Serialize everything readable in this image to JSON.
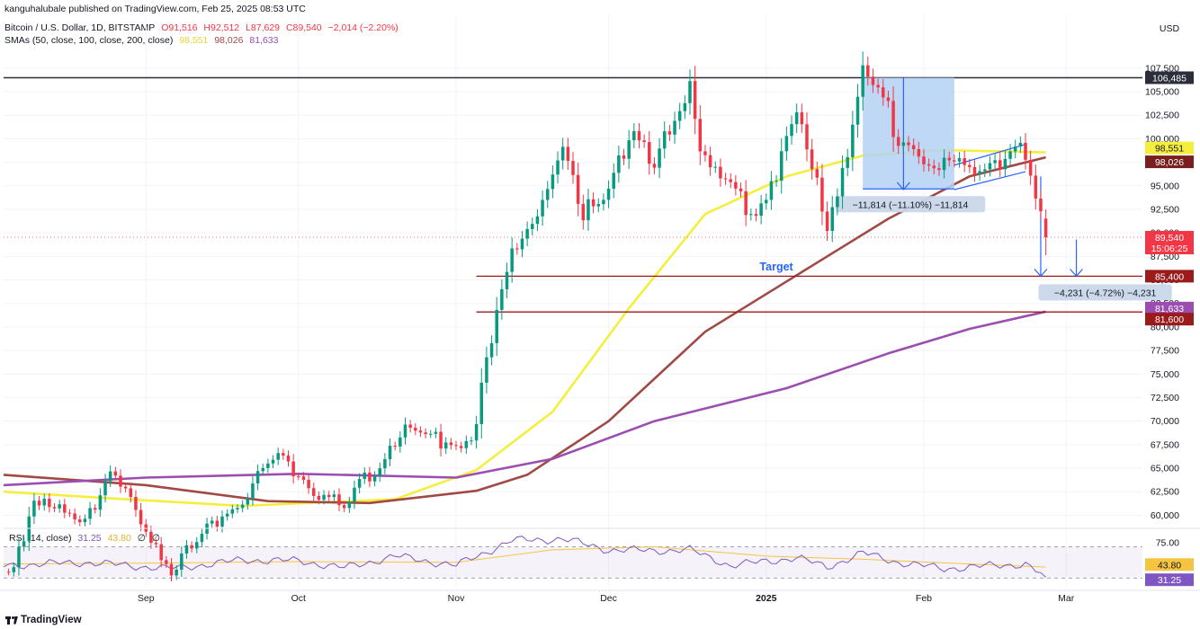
{
  "header": {
    "publisher": "kanguhalubale published on TradingView.com, Feb 25, 2025 08:53 UTC",
    "symbol": "Bitcoin / U.S. Dollar, 1D, BITSTAMP",
    "open": "O91,516",
    "high": "H92,512",
    "low": "L87,629",
    "close": "C89,540",
    "change": "−2,014 (−2.20%)",
    "sma_label": "SMAs (50, close, 100, close, 200, close)",
    "sma50": "98,551",
    "sma100": "98,026",
    "sma200": "81,633",
    "rsi_label": "RSI (14, close)",
    "rsi_value": "31.25",
    "rsi_ma": "43.80",
    "rsi_na": "∅",
    "rsi_na2": "∅"
  },
  "branding": {
    "logo_text": "TradingView"
  },
  "colors": {
    "up": "#089981",
    "down": "#f23645",
    "sma50": "#f5ee3f",
    "sma100": "#a14a45",
    "sma200": "#9c4eb0",
    "hline": "#9b1b1b",
    "resistance": "#000000",
    "measure_fill": "#b3d1f5",
    "arrow": "#2962ff",
    "rsi_line": "#7e57c2",
    "rsi_ma": "#f5c542"
  },
  "chart_data": {
    "type": "candlestick",
    "currency": "USD",
    "x_ticks": [
      "Sep",
      "Oct",
      "Nov",
      "Dec",
      "2025",
      "Feb",
      "Mar"
    ],
    "x_tick_dates": [
      "2024-09-01",
      "2024-10-01",
      "2024-11-01",
      "2024-12-01",
      "2025-01-01",
      "2025-02-01",
      "2025-03-01"
    ],
    "date_range": [
      "2024-08-04",
      "2025-03-16"
    ],
    "y_ticks": [
      60000,
      62500,
      65000,
      67500,
      70000,
      72500,
      75000,
      77500,
      80000,
      82500,
      85000,
      87500,
      90000,
      92500,
      95000,
      97500,
      100000,
      102500,
      105000,
      107500
    ],
    "y_tick_labels": [
      "60,000",
      "62,500",
      "65,000",
      "67,500",
      "70,000",
      "72,500",
      "75,000",
      "77,500",
      "80,000",
      "82,500",
      "85,000",
      "87,500",
      "90,000",
      "92,500",
      "95,000",
      "97,500",
      "100,000",
      "102,500",
      "105,000",
      "107,500"
    ],
    "ylim": [
      58800,
      109300
    ],
    "price_path": [
      [
        "2024-08-05",
        54000
      ],
      [
        "2024-08-10",
        61000
      ],
      [
        "2024-08-20",
        60000
      ],
      [
        "2024-08-25",
        64200
      ],
      [
        "2024-09-01",
        59000
      ],
      [
        "2024-09-06",
        54000
      ],
      [
        "2024-09-15",
        59500
      ],
      [
        "2024-09-27",
        66000
      ],
      [
        "2024-10-10",
        60500
      ],
      [
        "2024-10-20",
        68500
      ],
      [
        "2024-11-04",
        68000
      ],
      [
        "2024-11-12",
        88000
      ],
      [
        "2024-11-22",
        98500
      ],
      [
        "2024-11-26",
        91000
      ],
      [
        "2024-12-05",
        100500
      ],
      [
        "2024-12-10",
        96500
      ],
      [
        "2024-12-17",
        106200
      ],
      [
        "2024-12-20",
        97000
      ],
      [
        "2024-12-30",
        92000
      ],
      [
        "2025-01-07",
        102000
      ],
      [
        "2025-01-13",
        91000
      ],
      [
        "2025-01-20",
        106000
      ],
      [
        "2025-01-27",
        101000
      ],
      [
        "2025-02-03",
        96500
      ],
      [
        "2025-02-10",
        97300
      ],
      [
        "2025-02-20",
        98300
      ],
      [
        "2025-02-21",
        96200
      ],
      [
        "2025-02-24",
        91500
      ],
      [
        "2025-02-25",
        89540
      ]
    ],
    "last_candle": {
      "date": "2025-02-25",
      "open": 91516,
      "high": 92512,
      "low": 87629,
      "close": 89540
    },
    "sma_series": [
      {
        "name": "SMA 50",
        "points": [
          [
            "2024-08-04",
            62500
          ],
          [
            "2024-08-25",
            61800
          ],
          [
            "2024-09-20",
            61000
          ],
          [
            "2024-10-20",
            61700
          ],
          [
            "2024-11-05",
            64800
          ],
          [
            "2024-11-20",
            71000
          ],
          [
            "2024-12-05",
            82000
          ],
          [
            "2024-12-20",
            92000
          ],
          [
            "2025-01-05",
            96000
          ],
          [
            "2025-01-20",
            98200
          ],
          [
            "2025-02-05",
            98800
          ],
          [
            "2025-02-25",
            98551
          ]
        ]
      },
      {
        "name": "SMA 100",
        "points": [
          [
            "2024-08-04",
            64300
          ],
          [
            "2024-09-01",
            63200
          ],
          [
            "2024-09-25",
            61500
          ],
          [
            "2024-10-15",
            61300
          ],
          [
            "2024-11-05",
            62600
          ],
          [
            "2024-11-15",
            64300
          ],
          [
            "2024-12-01",
            70000
          ],
          [
            "2024-12-20",
            79500
          ],
          [
            "2025-01-10",
            86500
          ],
          [
            "2025-01-25",
            91500
          ],
          [
            "2025-02-10",
            96000
          ],
          [
            "2025-02-25",
            98026
          ]
        ]
      },
      {
        "name": "SMA 200",
        "points": [
          [
            "2024-08-04",
            63200
          ],
          [
            "2024-09-01",
            64000
          ],
          [
            "2024-10-01",
            64400
          ],
          [
            "2024-11-01",
            64000
          ],
          [
            "2024-11-20",
            66000
          ],
          [
            "2024-12-10",
            70000
          ],
          [
            "2025-01-05",
            73500
          ],
          [
            "2025-01-25",
            77200
          ],
          [
            "2025-02-10",
            79800
          ],
          [
            "2025-02-25",
            81633
          ]
        ]
      }
    ],
    "horizontal_lines": [
      {
        "price": 106485,
        "label": "106,485",
        "from": "2024-08-04",
        "to": "2025-03-16"
      },
      {
        "price": 85400,
        "label": "85,400",
        "from": "2024-11-05",
        "to": "2025-03-16"
      },
      {
        "price": 81600,
        "label": "81,600",
        "from": "2024-11-05",
        "to": "2025-03-16"
      }
    ],
    "price_labels": [
      {
        "price": 106485,
        "label": "106,485"
      },
      {
        "price": 98551,
        "label": "98,551"
      },
      {
        "price": 98026,
        "label": "98,026"
      },
      {
        "price": 89540,
        "label": "89,540",
        "sub": "15:06:25"
      },
      {
        "price": 85400,
        "label": "85,400"
      },
      {
        "price": 81633,
        "label": "81,633"
      },
      {
        "price": 81600,
        "label": "81,600"
      }
    ],
    "annotations": {
      "target": {
        "text": "Target",
        "date": "2025-01-03",
        "price": 86400
      },
      "measure1": {
        "text": "−11,814 (−11.10%) −11,814",
        "from": "2025-01-20",
        "to": "2025-02-07",
        "top": 106485,
        "bottom": 94670
      },
      "measure2": {
        "text": "−4,231 (−4.72%) −4,231",
        "date": "2025-02-25",
        "top": 89540,
        "bottom": 85400
      },
      "channel": {
        "upper": [
          [
            "2025-02-07",
            97200
          ],
          [
            "2025-02-21",
            99400
          ]
        ],
        "lower": [
          [
            "2025-02-07",
            94600
          ],
          [
            "2025-02-21",
            96500
          ]
        ]
      },
      "arrows": [
        {
          "date": "2025-01-28",
          "from": 106485,
          "to": 94600
        },
        {
          "date": "2025-02-24",
          "from": 96000,
          "to": 85400
        },
        {
          "date": "2025-03-03",
          "from": 89300,
          "to": 85400
        }
      ]
    },
    "rsi": {
      "name": "RSI (14, close)",
      "ticks": [
        75,
        50,
        25
      ],
      "tick_labels": [
        "75.00",
        "50.00",
        "25.00"
      ],
      "band": [
        70,
        30
      ],
      "ylim": [
        20,
        82
      ],
      "value": 31.25,
      "ma_value": 43.8,
      "value_label": "31.25",
      "ma_label": "43.80",
      "points": [
        [
          "2024-08-04",
          46
        ],
        [
          "2024-08-20",
          50
        ],
        [
          "2024-09-06",
          42
        ],
        [
          "2024-09-20",
          53
        ],
        [
          "2024-10-01",
          52
        ],
        [
          "2024-10-10",
          43
        ],
        [
          "2024-10-20",
          58
        ],
        [
          "2024-11-01",
          46
        ],
        [
          "2024-11-12",
          78
        ],
        [
          "2024-11-22",
          80
        ],
        [
          "2024-12-01",
          66
        ],
        [
          "2024-12-10",
          65
        ],
        [
          "2024-12-17",
          66
        ],
        [
          "2024-12-25",
          46
        ],
        [
          "2025-01-07",
          56
        ],
        [
          "2025-01-13",
          44
        ],
        [
          "2025-01-20",
          62
        ],
        [
          "2025-01-27",
          50
        ],
        [
          "2025-02-05",
          42
        ],
        [
          "2025-02-15",
          46
        ],
        [
          "2025-02-21",
          48
        ],
        [
          "2025-02-25",
          31
        ]
      ],
      "ma_points": [
        [
          "2024-08-04",
          48
        ],
        [
          "2024-09-01",
          49
        ],
        [
          "2024-10-01",
          51
        ],
        [
          "2024-11-01",
          50
        ],
        [
          "2024-11-20",
          66
        ],
        [
          "2024-12-10",
          70
        ],
        [
          "2025-01-01",
          58
        ],
        [
          "2025-01-20",
          54
        ],
        [
          "2025-02-10",
          48
        ],
        [
          "2025-02-25",
          44
        ]
      ]
    }
  }
}
